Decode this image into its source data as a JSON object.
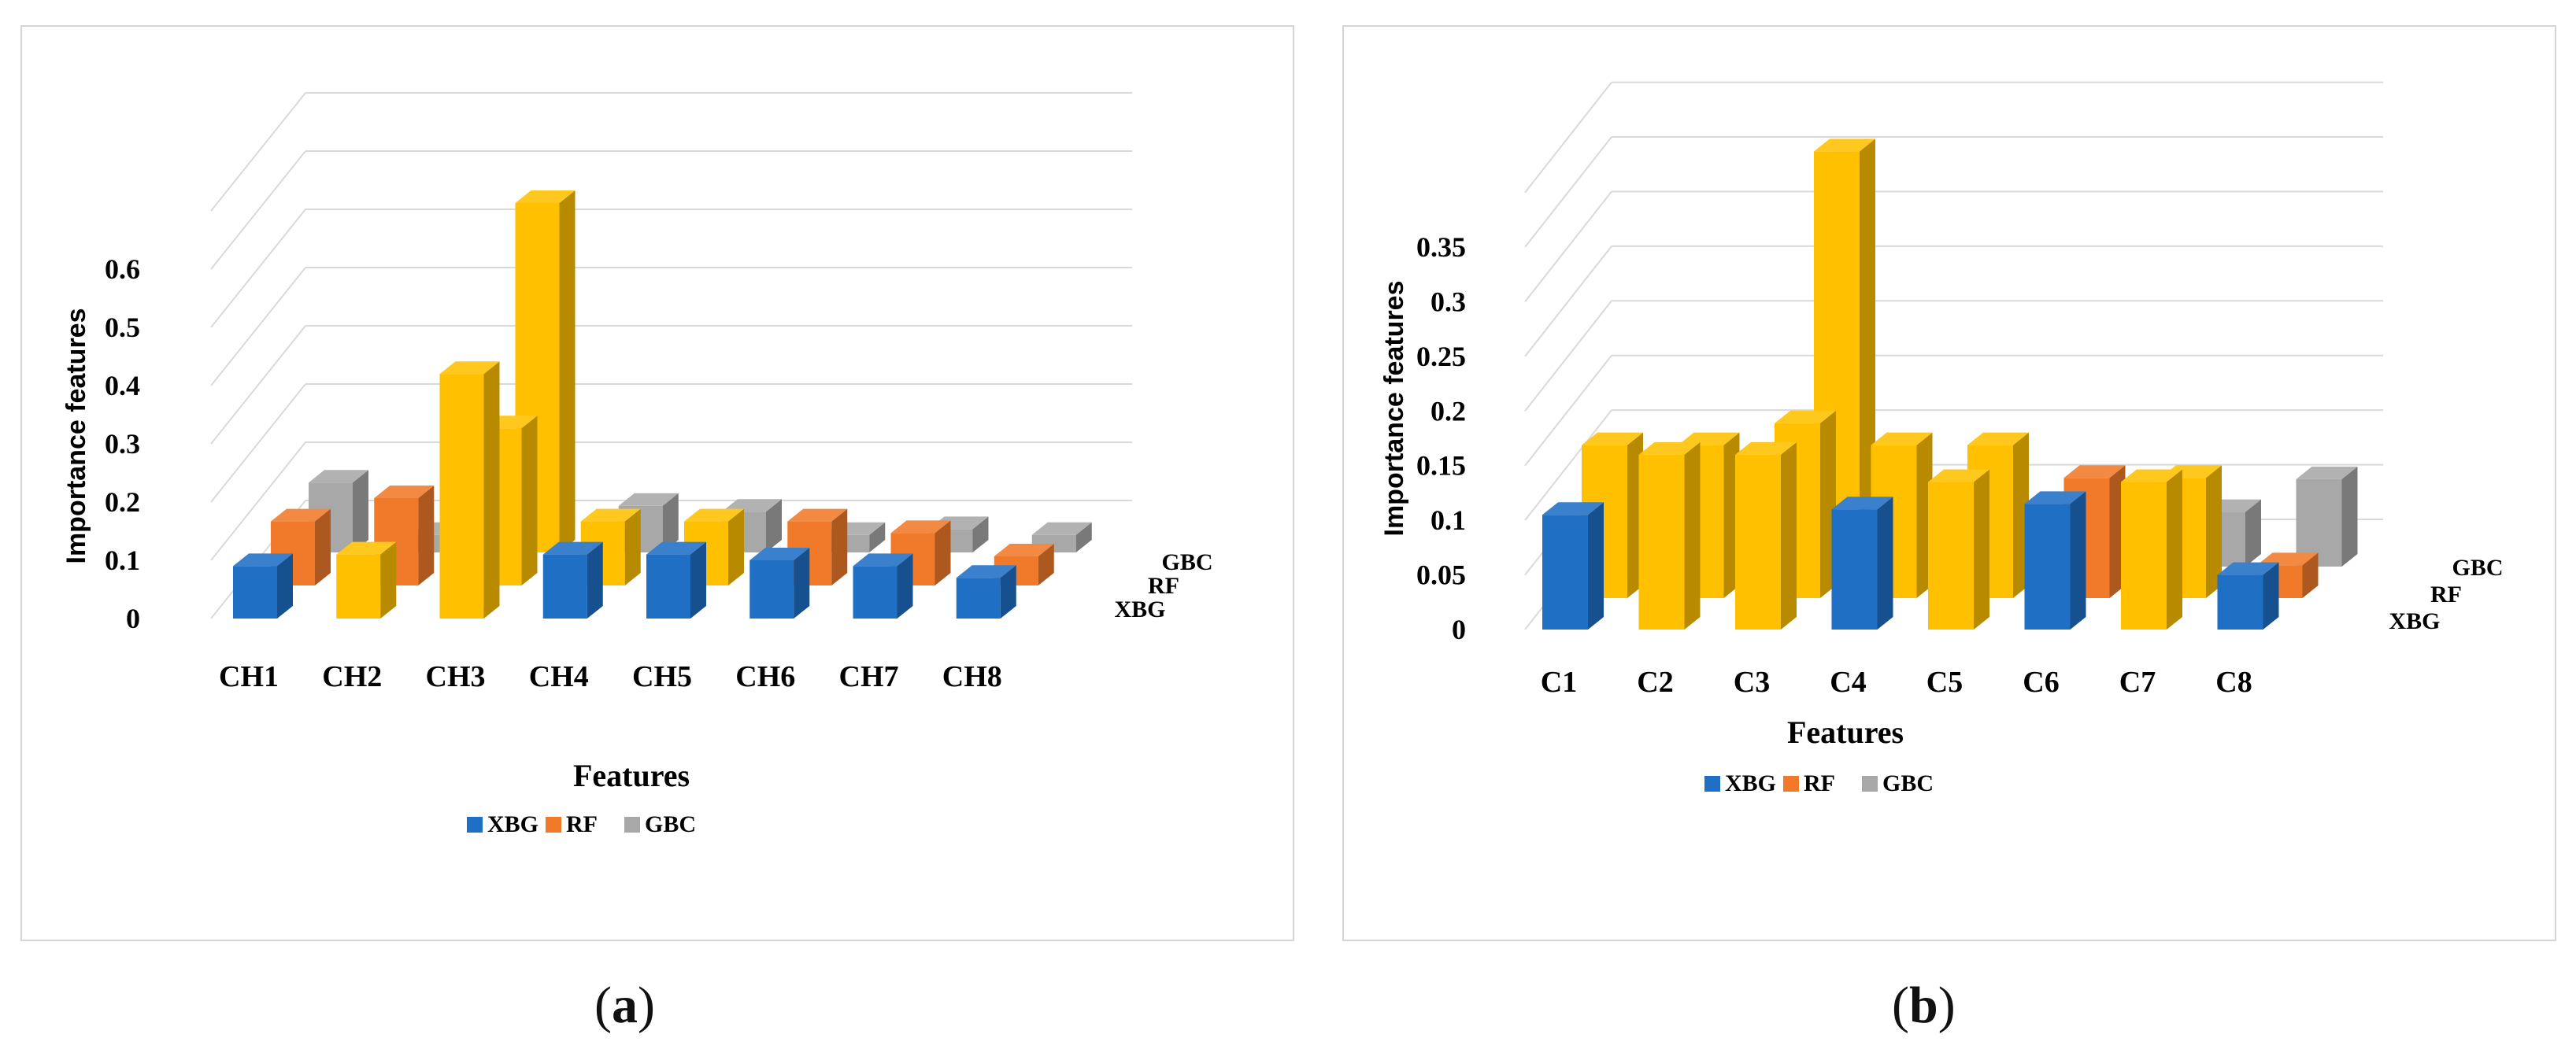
{
  "colors": {
    "XBG": "#1f6fc5",
    "RF": "#f07a2a",
    "GBC": "#a8a8a8",
    "CH3_highlight": "#ffc000"
  },
  "captions": {
    "a": "a",
    "b": "b"
  },
  "chart_data": [
    {
      "type": "bar",
      "variant": "3d-column",
      "title": "",
      "xlabel": "Features",
      "ylabel": "Importance features",
      "categories": [
        "CH1",
        "CH2",
        "CH3",
        "CH4",
        "CH5",
        "CH6",
        "CH7",
        "CH8"
      ],
      "ylim": [
        0,
        0.7
      ],
      "yticks": [
        "0",
        "0.1",
        "0.2",
        "0.3",
        "0.4",
        "0.5",
        "0.6"
      ],
      "series": [
        {
          "name": "XBG",
          "values": [
            0.09,
            0.11,
            0.42,
            0.11,
            0.11,
            0.1,
            0.09,
            0.07
          ]
        },
        {
          "name": "RF",
          "values": [
            0.11,
            0.15,
            0.27,
            0.11,
            0.11,
            0.11,
            0.09,
            0.05
          ]
        },
        {
          "name": "GBC",
          "values": [
            0.12,
            0.03,
            0.6,
            0.08,
            0.07,
            0.03,
            0.04,
            0.03
          ]
        }
      ],
      "highlight_bars": [
        [
          1,
          0
        ],
        [
          2,
          0
        ],
        [
          2,
          1
        ],
        [
          2,
          2
        ],
        [
          3,
          1
        ],
        [
          4,
          1
        ]
      ],
      "depth_labels": [
        "XBG",
        "RF",
        "GBC"
      ],
      "legend": [
        "XBG",
        "RF",
        "GBC"
      ]
    },
    {
      "type": "bar",
      "variant": "3d-column",
      "title": "",
      "xlabel": "Features",
      "ylabel": "Importance features",
      "categories": [
        "C1",
        "C2",
        "C3",
        "C4",
        "C5",
        "C6",
        "C7",
        "C8"
      ],
      "ylim": [
        0,
        0.4
      ],
      "yticks": [
        "0",
        "0.05",
        "0.1",
        "0.15",
        "0.2",
        "0.25",
        "0.3",
        "0.35"
      ],
      "series": [
        {
          "name": "XBG",
          "values": [
            0.105,
            0.16,
            0.16,
            0.11,
            0.135,
            0.115,
            0.135,
            0.05
          ]
        },
        {
          "name": "RF",
          "values": [
            0.14,
            0.14,
            0.16,
            0.14,
            0.14,
            0.11,
            0.11,
            0.03
          ]
        },
        {
          "name": "GBC",
          "values": [
            0.05,
            0.05,
            0.38,
            0.05,
            0.03,
            0.03,
            0.05,
            0.08
          ]
        }
      ],
      "highlight_bars": [
        [
          0,
          1
        ],
        [
          1,
          0
        ],
        [
          1,
          1
        ],
        [
          2,
          0
        ],
        [
          2,
          1
        ],
        [
          2,
          2
        ],
        [
          3,
          1
        ],
        [
          4,
          0
        ],
        [
          4,
          1
        ],
        [
          6,
          0
        ],
        [
          6,
          1
        ]
      ],
      "depth_labels": [
        "XBG",
        "RF",
        "GBC"
      ],
      "legend": [
        "XBG",
        "RF",
        "GBC"
      ]
    }
  ]
}
